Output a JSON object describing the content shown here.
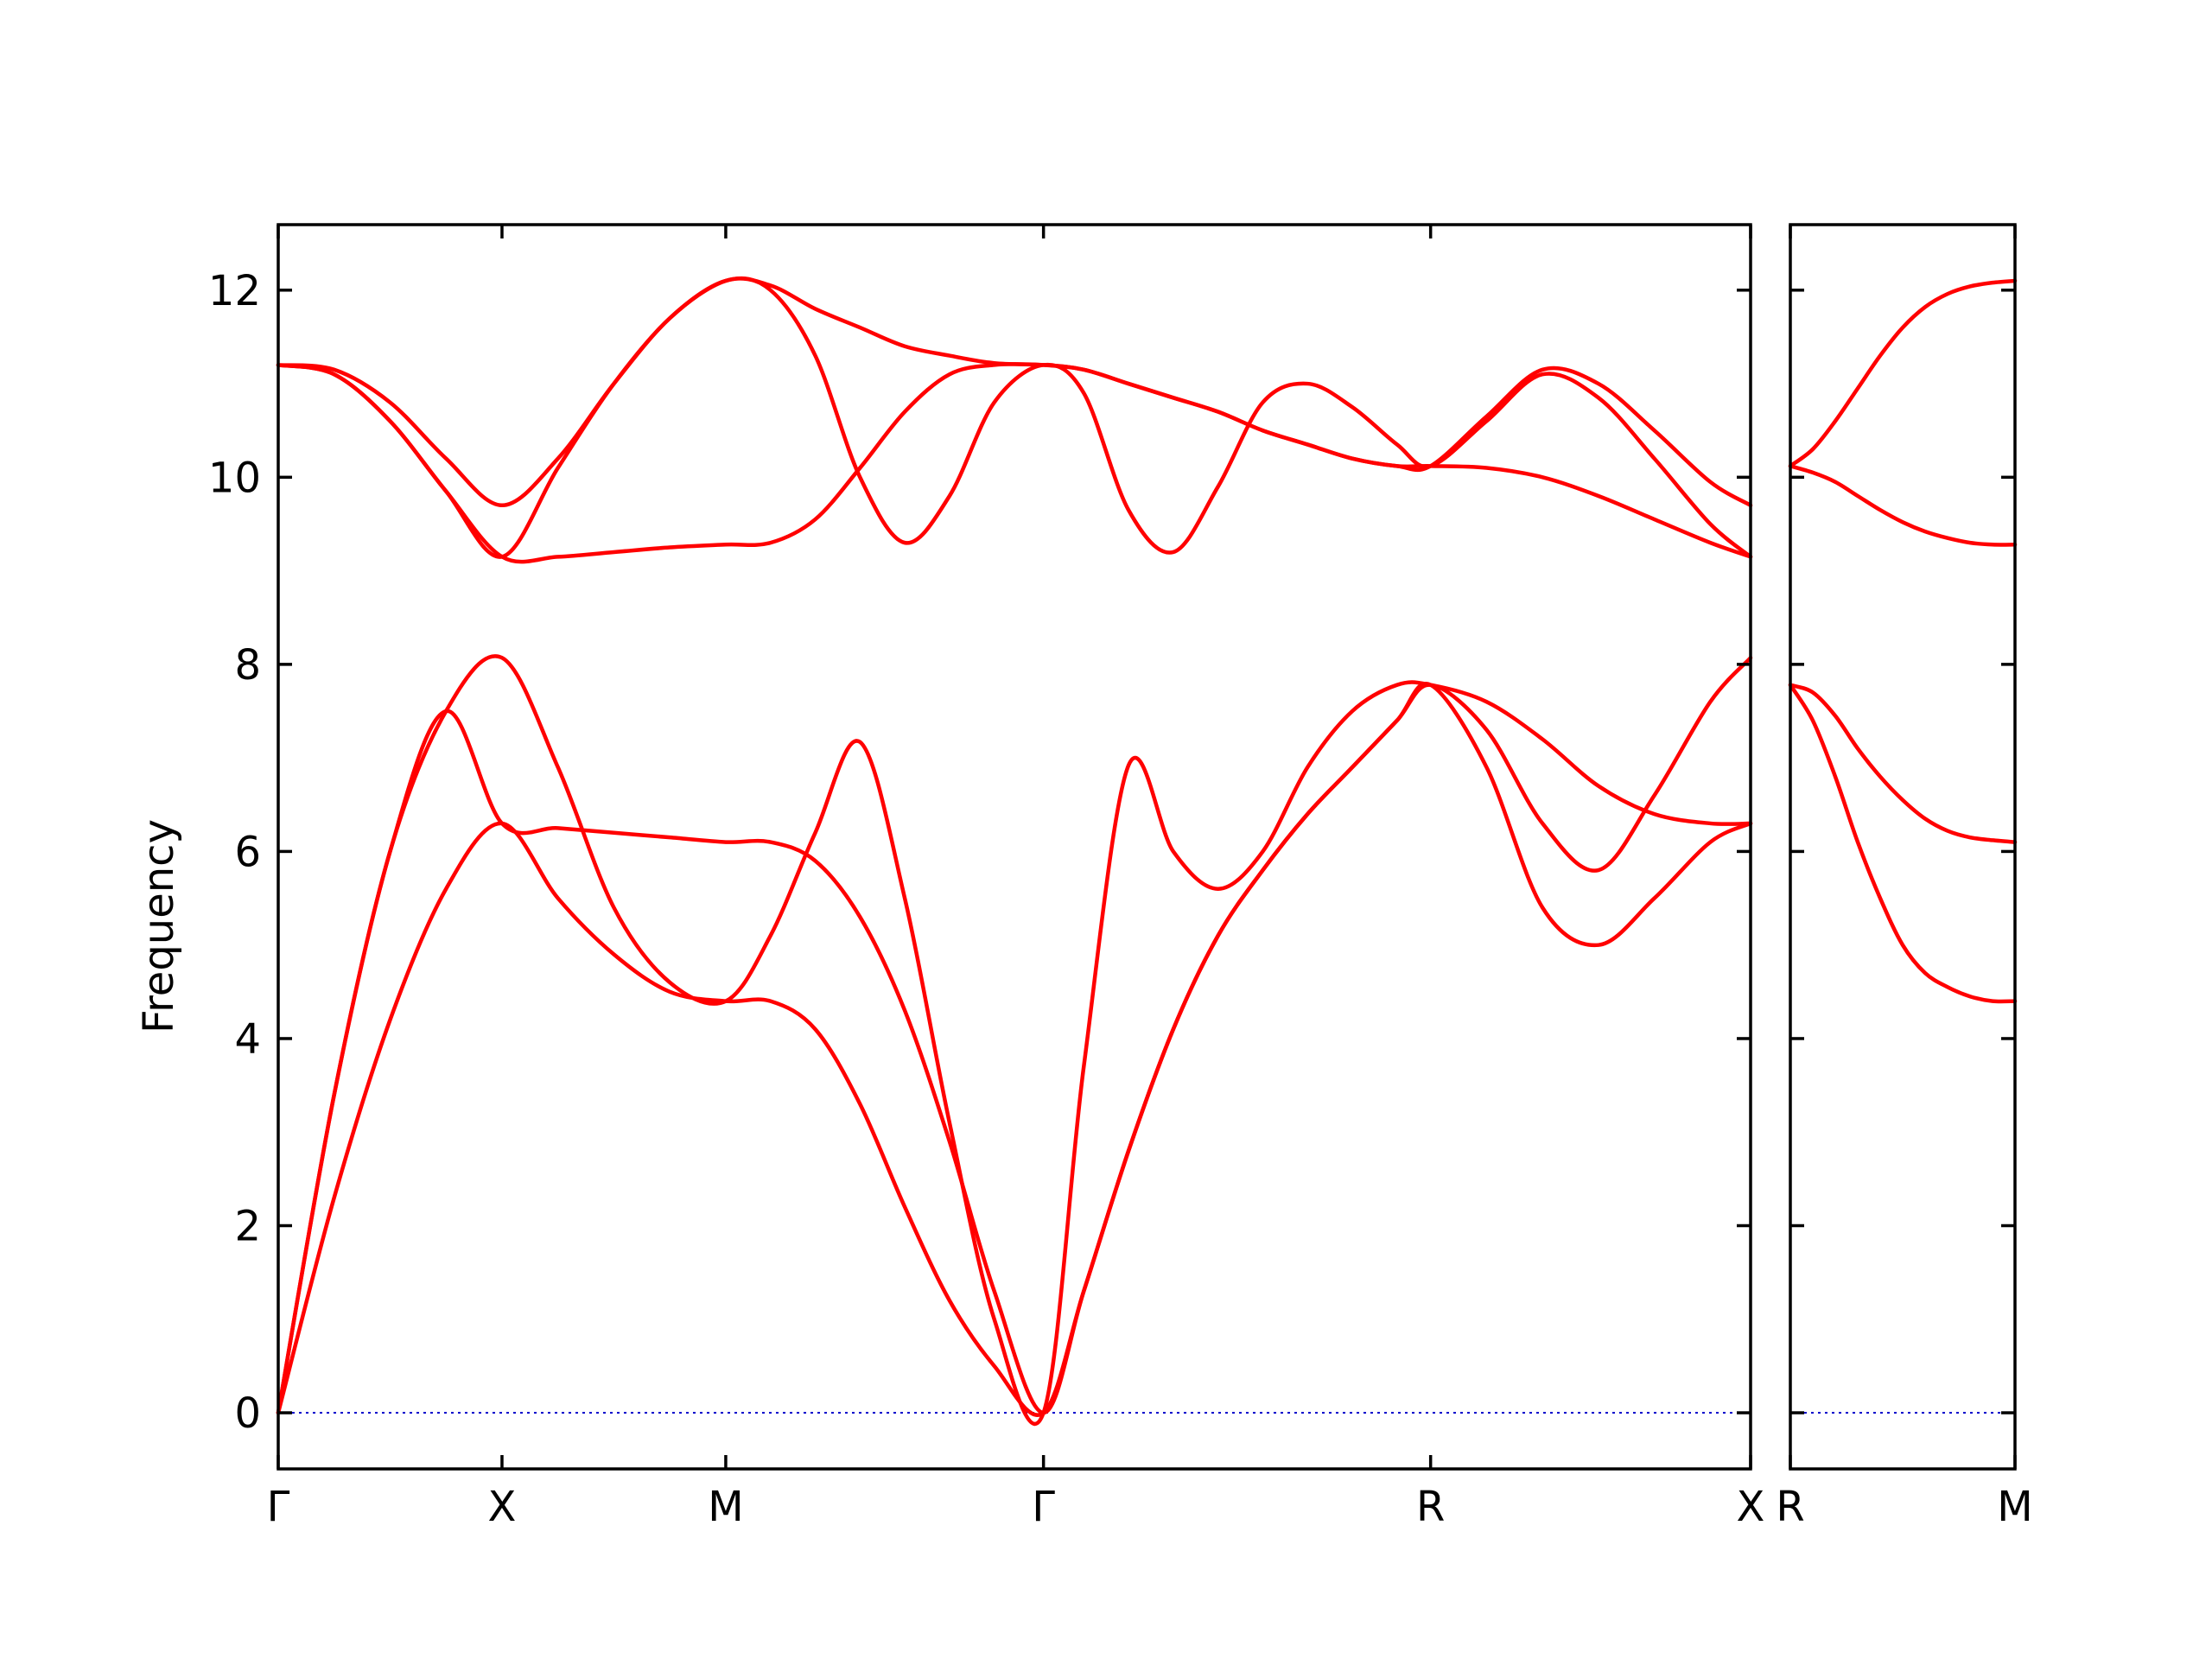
{
  "chart_data": {
    "type": "line",
    "title": "",
    "ylabel": "Frequency",
    "ylim": [
      -0.6,
      12.7
    ],
    "yticks": [
      0,
      2,
      4,
      6,
      8,
      10,
      12
    ],
    "band_color": "#ff0000",
    "zero_line_color": "#0000cc",
    "panels": [
      {
        "xlim": [
          0,
          6.58
        ],
        "high_symmetry_points": [
          {
            "label": "Γ",
            "x": 0
          },
          {
            "label": "X",
            "x": 1.0
          },
          {
            "label": "M",
            "x": 2.0
          },
          {
            "label": "Γ",
            "x": 3.42
          },
          {
            "label": "R",
            "x": 5.15
          },
          {
            "label": "X",
            "x": 6.58
          }
        ],
        "series": [
          {
            "x": [
              0,
              0.25,
              0.5,
              0.75,
              1.0,
              1.25,
              1.5,
              1.75,
              2.0,
              2.2,
              2.4,
              2.6,
              2.8,
              3.0,
              3.2,
              3.42,
              3.6,
              3.8,
              4.0,
              4.2,
              4.4,
              4.6,
              4.8,
              5.0,
              5.15,
              5.4,
              5.65,
              5.9,
              6.15,
              6.4,
              6.58
            ],
            "y": [
              0,
              2.3,
              4.2,
              5.6,
              6.3,
              5.5,
              4.9,
              4.5,
              4.4,
              4.4,
              4.1,
              3.3,
              2.2,
              1.2,
              0.5,
              0,
              1.3,
              2.8,
              4.1,
              5.1,
              5.8,
              6.4,
              6.9,
              7.4,
              7.78,
              6.9,
              5.4,
              5.0,
              5.5,
              6.1,
              6.3
            ]
          },
          {
            "x": [
              0,
              0.25,
              0.5,
              0.75,
              1.0,
              1.25,
              1.5,
              1.75,
              2.0,
              2.2,
              2.4,
              2.6,
              2.8,
              3.0,
              3.2,
              3.42,
              3.6,
              3.8,
              4.0,
              4.2,
              4.4,
              4.6,
              4.8,
              5.0,
              5.15,
              5.4,
              5.65,
              5.9,
              6.15,
              6.4,
              6.58
            ],
            "y": [
              0,
              3.4,
              6.0,
              7.5,
              8.07,
              6.9,
              5.4,
              4.6,
              4.4,
              5.1,
              6.2,
              7.17,
              5.5,
              3.1,
              1.0,
              0,
              3.7,
              6.92,
              6.0,
              5.6,
              6.0,
              6.9,
              7.5,
              7.78,
              7.78,
              7.6,
              7.2,
              6.7,
              6.4,
              6.3,
              6.3
            ]
          },
          {
            "x": [
              0,
              0.25,
              0.5,
              0.75,
              1.0,
              1.25,
              1.5,
              1.75,
              2.0,
              2.2,
              2.4,
              2.6,
              2.8,
              3.0,
              3.2,
              3.42,
              3.6,
              3.8,
              4.0,
              4.2,
              4.4,
              4.6,
              4.8,
              5.0,
              5.15,
              5.4,
              5.65,
              5.9,
              6.15,
              6.4,
              6.58
            ],
            "y": [
              0,
              3.4,
              6.0,
              7.5,
              6.3,
              6.25,
              6.2,
              6.15,
              6.1,
              6.1,
              5.9,
              5.3,
              4.3,
              2.9,
              1.3,
              0,
              1.3,
              2.8,
              4.1,
              5.1,
              5.8,
              6.4,
              6.9,
              7.4,
              7.78,
              7.3,
              6.3,
              5.8,
              6.6,
              7.6,
              8.07
            ]
          },
          {
            "x": [
              0,
              0.25,
              0.5,
              0.75,
              1.0,
              1.25,
              1.5,
              1.75,
              2.0,
              2.2,
              2.4,
              2.6,
              2.8,
              3.0,
              3.2,
              3.42,
              3.6,
              3.8,
              4.0,
              4.2,
              4.4,
              4.6,
              4.8,
              5.0,
              5.15,
              5.4,
              5.65,
              5.9,
              6.15,
              6.4,
              6.58
            ],
            "y": [
              11.2,
              11.1,
              10.6,
              9.85,
              9.15,
              9.15,
              9.2,
              9.25,
              9.28,
              9.3,
              9.55,
              10.1,
              10.7,
              11.1,
              11.2,
              11.2,
              11.15,
              11.0,
              10.85,
              10.7,
              10.5,
              10.35,
              10.2,
              10.12,
              10.12,
              10.1,
              10.0,
              9.8,
              9.55,
              9.3,
              9.15
            ]
          },
          {
            "x": [
              0,
              0.25,
              0.5,
              0.75,
              1.0,
              1.25,
              1.5,
              1.75,
              2.0,
              2.2,
              2.4,
              2.6,
              2.8,
              3.0,
              3.2,
              3.42,
              3.6,
              3.8,
              4.0,
              4.2,
              4.4,
              4.6,
              4.8,
              5.0,
              5.15,
              5.4,
              5.65,
              5.9,
              6.15,
              6.4,
              6.58
            ],
            "y": [
              11.2,
              11.1,
              10.6,
              9.85,
              9.15,
              10.1,
              11.0,
              11.7,
              12.1,
              12.0,
              11.3,
              10.0,
              9.3,
              9.8,
              10.8,
              11.2,
              10.9,
              9.65,
              9.2,
              9.9,
              10.8,
              11.0,
              10.75,
              10.35,
              10.12,
              10.6,
              11.1,
              10.85,
              10.2,
              9.5,
              9.15
            ]
          },
          {
            "x": [
              0,
              0.25,
              0.5,
              0.75,
              1.0,
              1.25,
              1.5,
              1.75,
              2.0,
              2.2,
              2.4,
              2.6,
              2.8,
              3.0,
              3.2,
              3.42,
              3.6,
              3.8,
              4.0,
              4.2,
              4.4,
              4.6,
              4.8,
              5.0,
              5.15,
              5.4,
              5.65,
              5.9,
              6.15,
              6.4,
              6.58
            ],
            "y": [
              11.2,
              11.15,
              10.8,
              10.2,
              9.7,
              10.2,
              11.0,
              11.7,
              12.1,
              12.05,
              11.8,
              11.6,
              11.4,
              11.3,
              11.22,
              11.2,
              11.15,
              11.0,
              10.85,
              10.7,
              10.5,
              10.35,
              10.2,
              10.12,
              10.12,
              10.65,
              11.15,
              11.0,
              10.5,
              9.95,
              9.7
            ]
          }
        ]
      },
      {
        "xlim": [
          0,
          1.0
        ],
        "high_symmetry_points": [
          {
            "label": "R",
            "x": 0
          },
          {
            "label": "M",
            "x": 1.0
          }
        ],
        "series": [
          {
            "x": [
              0,
              0.1,
              0.2,
              0.3,
              0.4,
              0.5,
              0.6,
              0.7,
              0.8,
              0.9,
              1.0
            ],
            "y": [
              7.78,
              7.4,
              6.8,
              6.1,
              5.5,
              5.0,
              4.7,
              4.55,
              4.45,
              4.4,
              4.4
            ]
          },
          {
            "x": [
              0,
              0.1,
              0.2,
              0.3,
              0.4,
              0.5,
              0.6,
              0.7,
              0.8,
              0.9,
              1.0
            ],
            "y": [
              7.78,
              7.7,
              7.45,
              7.1,
              6.8,
              6.55,
              6.35,
              6.22,
              6.15,
              6.12,
              6.1
            ]
          },
          {
            "x": [
              0,
              0.1,
              0.2,
              0.3,
              0.4,
              0.5,
              0.6,
              0.7,
              0.8,
              0.9,
              1.0
            ],
            "y": [
              10.12,
              10.05,
              9.95,
              9.8,
              9.65,
              9.52,
              9.42,
              9.35,
              9.3,
              9.28,
              9.28
            ]
          },
          {
            "x": [
              0,
              0.1,
              0.2,
              0.3,
              0.4,
              0.5,
              0.6,
              0.7,
              0.8,
              0.9,
              1.0
            ],
            "y": [
              10.12,
              10.3,
              10.6,
              10.95,
              11.3,
              11.6,
              11.82,
              11.96,
              12.04,
              12.08,
              12.1
            ]
          }
        ]
      }
    ]
  }
}
